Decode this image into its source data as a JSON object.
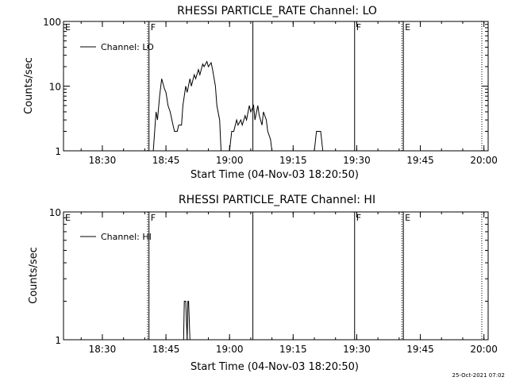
{
  "chart_data": [
    {
      "type": "line",
      "title": "RHESSI PARTICLE_RATE Channel: LO",
      "xlabel": "Start Time (04-Nov-03 18:20:50)",
      "ylabel": "Counts/sec",
      "y_scale": "log",
      "ylim": [
        1,
        100
      ],
      "yticks": [
        "1",
        "10",
        "100"
      ],
      "xlim": [
        "18:20:50",
        "20:01:00"
      ],
      "xticks": [
        "18:30",
        "18:45",
        "19:00",
        "19:15",
        "19:30",
        "19:45",
        "20:00"
      ],
      "legend": {
        "entries": [
          "Channel: LO"
        ],
        "placement": "top-left"
      },
      "series": [
        {
          "name": "Channel: LO",
          "x": [
            "18:36",
            "18:37",
            "18:38",
            "18:39",
            "18:40",
            "18:41",
            "18:41:30",
            "18:42",
            "18:42:40",
            "18:43",
            "18:43:30",
            "18:44",
            "18:44:40",
            "18:45",
            "18:45:30",
            "18:46",
            "18:46:40",
            "18:47",
            "18:47:40",
            "18:48",
            "18:48:40",
            "18:49",
            "18:49:40",
            "18:50",
            "18:50:40",
            "18:51",
            "18:51:40",
            "18:52",
            "18:52:40",
            "18:53",
            "18:53:40",
            "18:54",
            "18:54:40",
            "18:55",
            "18:55:40",
            "18:56",
            "18:56:40",
            "18:57",
            "18:57:40",
            "18:58",
            "18:59",
            "19:00",
            "19:00:30",
            "19:01",
            "19:01:40",
            "19:02",
            "19:02:40",
            "19:03",
            "19:03:40",
            "19:04",
            "19:04:40",
            "19:05",
            "19:05:40",
            "19:06",
            "19:06:40",
            "19:07",
            "19:07:40",
            "19:08",
            "19:08:40",
            "19:09",
            "19:09:40",
            "19:10",
            "19:11",
            "19:12",
            "19:20",
            "19:20:30",
            "19:21",
            "19:21:30",
            "19:22",
            "19:23"
          ],
          "values": [
            null,
            null,
            null,
            null,
            null,
            null,
            null,
            1,
            4,
            3,
            7,
            13,
            9,
            8,
            5,
            4,
            2.5,
            2,
            2,
            2.5,
            2.5,
            5,
            10,
            8,
            13,
            10,
            15,
            13,
            18,
            15,
            22,
            20,
            24,
            20,
            23,
            18,
            10,
            5,
            3,
            1,
            null,
            1,
            2,
            2,
            3,
            2.5,
            3,
            2.5,
            3.5,
            3,
            5,
            4,
            5,
            3,
            5,
            3.5,
            2.5,
            4,
            3,
            2,
            1.5,
            1,
            null,
            null,
            1,
            2,
            2,
            2,
            1,
            null
          ]
        }
      ],
      "lines": {
        "solid": [
          "18:41:00",
          "19:05:30",
          "19:29:30",
          "19:41:00"
        ],
        "dotted": [
          "18:40:40",
          "19:40:40",
          "19:59:30"
        ]
      },
      "annotations": [
        {
          "text": "E",
          "at": "18:20:50"
        },
        {
          "text": "F",
          "at": "18:41:00"
        },
        {
          "text": "F",
          "at": "19:29:30"
        },
        {
          "text": "E",
          "at": "19:41:00"
        }
      ]
    },
    {
      "type": "line",
      "title": "RHESSI PARTICLE_RATE Channel: HI",
      "xlabel": "Start Time (04-Nov-03 18:20:50)",
      "ylabel": "Counts/sec",
      "y_scale": "log",
      "ylim": [
        1,
        10
      ],
      "yticks": [
        "1",
        "10"
      ],
      "xlim": [
        "18:20:50",
        "20:01:00"
      ],
      "xticks": [
        "18:30",
        "18:45",
        "19:00",
        "19:15",
        "19:30",
        "19:45",
        "20:00"
      ],
      "legend": {
        "entries": [
          "Channel: HI"
        ],
        "placement": "top-left"
      },
      "series": [
        {
          "name": "Channel: HI",
          "x": [
            "18:48",
            "18:49:10",
            "18:49:20",
            "18:49:40",
            "18:50:00",
            "18:50:10",
            "18:50:20",
            "18:50:40",
            "18:51",
            "18:52"
          ],
          "values": [
            null,
            1,
            2,
            2,
            1,
            2,
            2,
            1,
            null,
            null
          ]
        }
      ],
      "lines": {
        "solid": [
          "18:41:00",
          "19:05:30",
          "19:29:30",
          "19:41:00"
        ],
        "dotted": [
          "18:40:40",
          "19:40:40",
          "19:59:30"
        ]
      },
      "annotations": [
        {
          "text": "E",
          "at": "18:20:50"
        },
        {
          "text": "F",
          "at": "18:41:00"
        },
        {
          "text": "F",
          "at": "19:29:30"
        },
        {
          "text": "E",
          "at": "19:41:00"
        }
      ]
    }
  ],
  "footer": {
    "timestamp": "25-Oct-2021 07:02"
  }
}
